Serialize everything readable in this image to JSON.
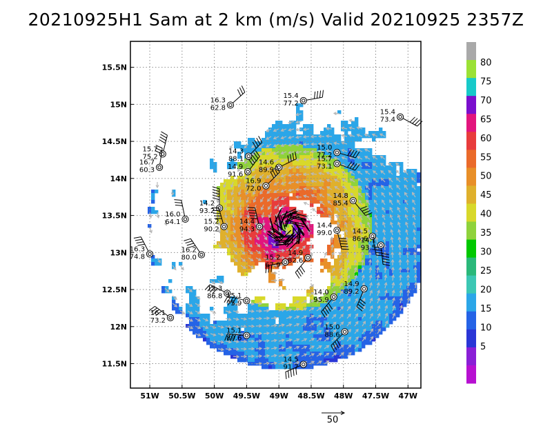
{
  "title": "20210925H1 Sam at 2 km (m/s) Valid 20210925 2357Z",
  "axes": {
    "lon_min": -51.3,
    "lon_max": -46.8,
    "lat_min": 11.17,
    "lat_max": 15.85,
    "x_ticks": [
      {
        "value": -51.0,
        "label": "51W"
      },
      {
        "value": -50.5,
        "label": "50.5W"
      },
      {
        "value": -50.0,
        "label": "50W"
      },
      {
        "value": -49.5,
        "label": "49.5W"
      },
      {
        "value": -49.0,
        "label": "49W"
      },
      {
        "value": -48.5,
        "label": "48.5W"
      },
      {
        "value": -48.0,
        "label": "48W"
      },
      {
        "value": -47.5,
        "label": "47.5W"
      },
      {
        "value": -47.0,
        "label": "47W"
      }
    ],
    "y_ticks": [
      {
        "value": 11.5,
        "label": "11.5N"
      },
      {
        "value": 12.0,
        "label": "12N"
      },
      {
        "value": 12.5,
        "label": "12.5N"
      },
      {
        "value": 13.0,
        "label": "13N"
      },
      {
        "value": 13.5,
        "label": "13.5N"
      },
      {
        "value": 14.0,
        "label": "14N"
      },
      {
        "value": 14.5,
        "label": "14.5N"
      },
      {
        "value": 15.0,
        "label": "15N"
      },
      {
        "value": 15.5,
        "label": "15.5N"
      }
    ]
  },
  "center": {
    "lon": -48.85,
    "lat": 13.33
  },
  "colorbar": {
    "labels": [
      "80",
      "75",
      "70",
      "65",
      "60",
      "55",
      "50",
      "45",
      "40",
      "35",
      "30",
      "25",
      "20",
      "15",
      "10",
      "5"
    ],
    "colors": [
      "#a9a9a9",
      "#9be135",
      "#17c9c9",
      "#7a0fcd",
      "#e2157d",
      "#e83c3c",
      "#ea6a2a",
      "#e88f28",
      "#dfb02c",
      "#d8d82a",
      "#8fd23c",
      "#00c800",
      "#2ab87a",
      "#3cc7b4",
      "#2ba6e8",
      "#2563e6",
      "#2a36d6",
      "#8a1fd6",
      "#b710d1"
    ]
  },
  "reference_vector": {
    "label": "50"
  },
  "stations": [
    {
      "lon": -49.75,
      "lat": 14.99,
      "temp": "16.3",
      "val": "62.8"
    },
    {
      "lon": -48.62,
      "lat": 15.05,
      "temp": "15.4",
      "val": "77.2"
    },
    {
      "lon": -47.12,
      "lat": 14.83,
      "temp": "15.4",
      "val": "73.4"
    },
    {
      "lon": -50.8,
      "lat": 14.33,
      "temp": "15.7",
      "val": "75.2"
    },
    {
      "lon": -50.85,
      "lat": 14.15,
      "temp": "16.7",
      "val": "60.3"
    },
    {
      "lon": -49.47,
      "lat": 14.3,
      "temp": "14.3",
      "val": "88.1"
    },
    {
      "lon": -49.48,
      "lat": 14.09,
      "temp": "14.9",
      "val": "91.6"
    },
    {
      "lon": -49.0,
      "lat": 14.15,
      "temp": "14.6",
      "val": "89.9"
    },
    {
      "lon": -48.1,
      "lat": 14.35,
      "temp": "15.0",
      "val": "77.2"
    },
    {
      "lon": -48.1,
      "lat": 14.2,
      "temp": "15.7",
      "val": "73.1"
    },
    {
      "lon": -49.2,
      "lat": 13.9,
      "temp": "16.9",
      "val": "72.0"
    },
    {
      "lon": -47.85,
      "lat": 13.7,
      "temp": "14.8",
      "val": "85.4"
    },
    {
      "lon": -49.92,
      "lat": 13.6,
      "temp": "14.2",
      "val": "93.2"
    },
    {
      "lon": -50.45,
      "lat": 13.45,
      "temp": "16.0",
      "val": "64.1"
    },
    {
      "lon": -49.85,
      "lat": 13.35,
      "temp": "15.2",
      "val": "90.2"
    },
    {
      "lon": -49.3,
      "lat": 13.35,
      "temp": "14.4",
      "val": "94.3"
    },
    {
      "lon": -48.1,
      "lat": 13.3,
      "temp": "14.4",
      "val": "99.0"
    },
    {
      "lon": -47.55,
      "lat": 13.22,
      "temp": "14.5",
      "val": "86.6"
    },
    {
      "lon": -47.42,
      "lat": 13.1,
      "temp": "14.1",
      "val": "93.5"
    },
    {
      "lon": -51.0,
      "lat": 12.98,
      "temp": "16.3",
      "val": "74.8"
    },
    {
      "lon": -50.2,
      "lat": 12.97,
      "temp": "16.2",
      "val": "80.0"
    },
    {
      "lon": -48.55,
      "lat": 12.93,
      "temp": "14.9",
      "val": "82.6"
    },
    {
      "lon": -48.9,
      "lat": 12.87,
      "temp": "15.2",
      "val": "67.9"
    },
    {
      "lon": -49.8,
      "lat": 12.45,
      "temp": "15.3",
      "val": "86.8"
    },
    {
      "lon": -49.5,
      "lat": 12.35,
      "temp": "15.1",
      "val": "75.9"
    },
    {
      "lon": -48.15,
      "lat": 12.4,
      "temp": "14.0",
      "val": "95.9"
    },
    {
      "lon": -47.68,
      "lat": 12.51,
      "temp": "14.9",
      "val": "89.2"
    },
    {
      "lon": -50.68,
      "lat": 12.12,
      "temp": "16.1",
      "val": "73.2"
    },
    {
      "lon": -49.5,
      "lat": 11.88,
      "temp": "15.1",
      "val": "89.6"
    },
    {
      "lon": -47.98,
      "lat": 11.93,
      "temp": "15.0",
      "val": "88.6"
    },
    {
      "lon": -48.62,
      "lat": 11.49,
      "temp": "14.5",
      "val": "91.7"
    }
  ]
}
